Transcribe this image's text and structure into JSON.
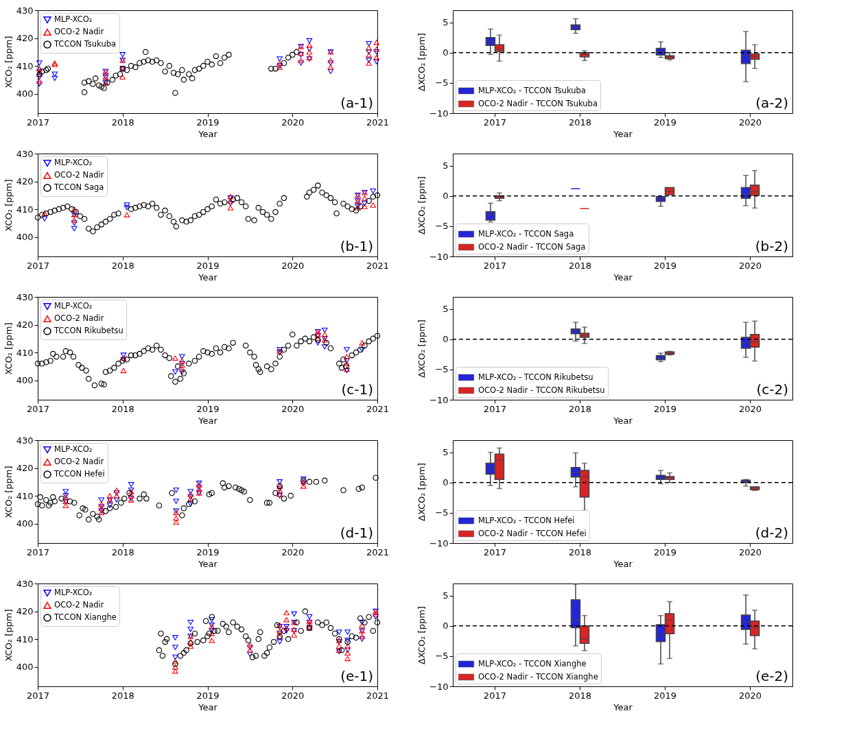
{
  "chart_data": [
    {
      "type": "scatter",
      "xlabel": "Year",
      "ylabel": "XCO₂  [ppm]",
      "xlim": [
        2017,
        2021
      ],
      "xticks": [
        2017,
        2018,
        2019,
        2020,
        2021
      ],
      "ylim": [
        393,
        430
      ],
      "yticks": [
        400,
        410,
        420,
        430
      ],
      "legend": "top left",
      "annotations": [
        "(a-1)"
      ],
      "series": [
        {
          "name": "MLP-XCO₂",
          "color": "#0000ff",
          "marker": "triangle-down",
          "x": [
            2017.02,
            2017.02,
            2017.02,
            2017.02,
            2017.2,
            2017.2,
            2017.8,
            2017.8,
            2017.8,
            2018.0,
            2018.0,
            2018.0,
            2019.85,
            2019.85,
            2020.1,
            2020.1,
            2020.1,
            2020.2,
            2020.2,
            2020.2,
            2020.45,
            2020.45,
            2020.45,
            2020.9,
            2020.9,
            2020.9,
            2020.99,
            2020.99
          ],
          "values": [
            403.5,
            406,
            408,
            411,
            405.5,
            407,
            404,
            406,
            408,
            409,
            412,
            414,
            410,
            412.5,
            411,
            414,
            417,
            412.5,
            416,
            419,
            408,
            411,
            415,
            412,
            415,
            418,
            411.5,
            415
          ]
        },
        {
          "name": "OCO-2 Nadir",
          "color": "#ff0000",
          "marker": "triangle",
          "x": [
            2017.02,
            2017.02,
            2017.02,
            2017.2,
            2017.2,
            2017.8,
            2017.8,
            2017.8,
            2018.0,
            2018.0,
            2018.0,
            2019.85,
            2019.85,
            2020.1,
            2020.1,
            2020.1,
            2020.2,
            2020.2,
            2020.2,
            2020.45,
            2020.45,
            2020.45,
            2020.9,
            2020.9,
            2020.9,
            2020.99,
            2020.99,
            2020.99
          ],
          "values": [
            404.5,
            407,
            409,
            410.5,
            411,
            404,
            406,
            408,
            406,
            409,
            412,
            409.5,
            411,
            412,
            414.5,
            417,
            413,
            415,
            417.5,
            409.5,
            412,
            415,
            411,
            414,
            416.5,
            413,
            416,
            418.5
          ]
        },
        {
          "name": "TCCON Tsukuba",
          "color": "#000000",
          "marker": "circle",
          "x": [
            2017.02,
            2017.05,
            2017.1,
            2017.12,
            2017.55,
            2017.55,
            2017.6,
            2017.65,
            2017.68,
            2017.72,
            2017.75,
            2017.78,
            2017.82,
            2017.88,
            2017.92,
            2017.97,
            2018.0,
            2018.05,
            2018.1,
            2018.15,
            2018.2,
            2018.25,
            2018.27,
            2018.3,
            2018.35,
            2018.4,
            2018.45,
            2018.5,
            2018.55,
            2018.6,
            2018.62,
            2018.65,
            2018.7,
            2018.72,
            2018.78,
            2018.82,
            2018.85,
            2018.9,
            2018.95,
            2019.0,
            2019.05,
            2019.1,
            2019.15,
            2019.2,
            2019.25,
            2019.75,
            2019.8,
            2019.9,
            2019.95,
            2020.0,
            2020.05
          ],
          "values": [
            407,
            408,
            408.5,
            409,
            400.5,
            404,
            404.5,
            403.5,
            405.5,
            403,
            402.5,
            402,
            404,
            405,
            406.5,
            407,
            409,
            408.5,
            410,
            409.5,
            411,
            411.5,
            415,
            412,
            411.5,
            412,
            411,
            408,
            410,
            407.5,
            400.3,
            407,
            408.5,
            405,
            407,
            405.5,
            408.5,
            409,
            410,
            411.5,
            410.5,
            413.5,
            411,
            413,
            414,
            409,
            409,
            411,
            413,
            414,
            415
          ]
        }
      ]
    },
    {
      "type": "box",
      "categories": [
        "2017",
        "2018",
        "2019",
        "2020"
      ],
      "xlabel": "Year",
      "ylabel": "ΔXCO₂  [ppm]",
      "ylim": [
        -10,
        7
      ],
      "yticks": [
        -10,
        -5,
        0,
        5
      ],
      "ref_lines": [
        {
          "axis": "y",
          "value": 0,
          "color": "#000000",
          "line_style": "dashed"
        }
      ],
      "legend": "bottom left",
      "annotations": [
        "(a-2)"
      ],
      "series": [
        {
          "name": "MLP-XCO₂ - TCCON Tsukuba",
          "color": "#2424d8",
          "boxes": [
            {
              "low": -0.3,
              "q1": 1.2,
              "median": 1.8,
              "q3": 2.5,
              "high": 3.9
            },
            {
              "low": 3.2,
              "q1": 3.8,
              "median": 4.2,
              "q3": 4.6,
              "high": 5.6
            },
            {
              "low": -0.8,
              "q1": -0.4,
              "median": 0.1,
              "q3": 0.7,
              "high": 1.8
            },
            {
              "low": -4.8,
              "q1": -1.8,
              "median": -0.5,
              "q3": 0.4,
              "high": 3.5
            }
          ]
        },
        {
          "name": "OCO-2 Nadir - TCCON Tsukuba",
          "color": "#d82424",
          "boxes": [
            {
              "low": -1.4,
              "q1": 0.2,
              "median": 0.6,
              "q3": 1.3,
              "high": 2.9
            },
            {
              "low": -1.3,
              "q1": -0.7,
              "median": -0.3,
              "q3": 0,
              "high": 0.3
            },
            {
              "low": -1.2,
              "q1": -1.0,
              "median": -0.7,
              "q3": -0.5,
              "high": 0
            },
            {
              "low": -2.6,
              "q1": -1.1,
              "median": -0.6,
              "q3": -0.2,
              "high": 1.3
            }
          ]
        }
      ]
    },
    {
      "type": "scatter",
      "xlabel": "Year",
      "ylabel": "XCO₂  [ppm]",
      "xlim": [
        2017,
        2021
      ],
      "xticks": [
        2017,
        2018,
        2019,
        2020,
        2021
      ],
      "ylim": [
        393,
        430
      ],
      "yticks": [
        400,
        410,
        420,
        430
      ],
      "legend": "top left",
      "annotations": [
        "(b-1)"
      ],
      "series": [
        {
          "name": "MLP-XCO₂",
          "color": "#0000ff",
          "marker": "triangle-down",
          "x": [
            2017.08,
            2017.43,
            2017.43,
            2017.43,
            2018.05,
            2018.05,
            2019.27,
            2019.27,
            2020.77,
            2020.77,
            2020.77,
            2020.85,
            2020.85,
            2020.95
          ],
          "values": [
            406.5,
            403,
            405,
            408,
            411.5,
            410.5,
            412,
            414,
            411,
            413,
            415,
            412,
            416,
            416.5
          ]
        },
        {
          "name": "OCO-2 Nadir",
          "color": "#ff0000",
          "marker": "triangle",
          "x": [
            2017.08,
            2017.43,
            2017.43,
            2017.43,
            2018.05,
            2019.27,
            2019.27,
            2019.27,
            2020.77,
            2020.77,
            2020.77,
            2020.85,
            2020.85,
            2020.85,
            2020.95
          ],
          "values": [
            408.5,
            406,
            408,
            410,
            408,
            410.5,
            413,
            414.5,
            410.5,
            413,
            415,
            411,
            414,
            416,
            411.5
          ]
        },
        {
          "name": "TCCON Saga",
          "color": "#000000",
          "marker": "circle",
          "x": [
            2017.0,
            2017.05,
            2017.1,
            2017.15,
            2017.2,
            2017.25,
            2017.3,
            2017.35,
            2017.4,
            2017.45,
            2017.5,
            2017.55,
            2017.6,
            2017.65,
            2017.7,
            2017.75,
            2017.8,
            2017.85,
            2017.9,
            2017.95,
            2018.1,
            2018.15,
            2018.2,
            2018.25,
            2018.3,
            2018.35,
            2018.4,
            2018.45,
            2018.5,
            2018.55,
            2018.6,
            2018.63,
            2018.7,
            2018.75,
            2018.8,
            2018.85,
            2018.9,
            2018.95,
            2019.0,
            2019.05,
            2019.1,
            2019.15,
            2019.2,
            2019.3,
            2019.35,
            2019.4,
            2019.45,
            2019.48,
            2019.55,
            2019.6,
            2019.65,
            2019.7,
            2019.75,
            2019.8,
            2019.85,
            2019.9,
            2020.17,
            2020.2,
            2020.25,
            2020.3,
            2020.35,
            2020.4,
            2020.45,
            2020.5,
            2020.52,
            2020.6,
            2020.65,
            2020.7,
            2020.75,
            2020.8,
            2020.9,
            2020.95,
            2021.0
          ],
          "values": [
            407,
            408,
            408.5,
            409,
            409.5,
            410,
            410.5,
            411,
            410,
            409,
            407.5,
            406.5,
            403,
            402,
            403.5,
            404.5,
            405.5,
            406.5,
            408,
            408.5,
            410,
            410.5,
            411,
            411.5,
            411,
            412,
            410.5,
            408,
            409.5,
            407.5,
            405.5,
            403.8,
            406,
            405.5,
            406,
            407.5,
            408,
            409,
            410,
            411,
            413.5,
            412,
            412.5,
            413.5,
            414,
            412.5,
            411,
            406.5,
            406,
            410.5,
            409,
            408,
            406.5,
            409,
            412,
            414,
            414.5,
            416,
            417,
            418.5,
            416,
            415,
            414,
            412.5,
            408.5,
            412,
            411,
            410,
            409.5,
            411,
            413,
            414.5,
            415
          ]
        }
      ]
    },
    {
      "type": "box",
      "categories": [
        "2017",
        "2018",
        "2019",
        "2020"
      ],
      "xlabel": "Year",
      "ylabel": "ΔXCO₂  [ppm]",
      "ylim": [
        -10,
        7
      ],
      "yticks": [
        -10,
        -5,
        0,
        5
      ],
      "ref_lines": [
        {
          "axis": "y",
          "value": 0,
          "color": "#000000",
          "line_style": "dashed"
        }
      ],
      "legend": "bottom left",
      "annotations": [
        "(b-2)"
      ],
      "series": [
        {
          "name": "MLP-XCO₂ - TCCON Saga",
          "color": "#2424d8",
          "boxes": [
            {
              "low": -4.3,
              "q1": -4.0,
              "median": -3.1,
              "q3": -2.6,
              "high": -1.2
            },
            {
              "low": 1.2,
              "q1": 1.2,
              "median": 1.2,
              "q3": 1.2,
              "high": 1.2
            },
            {
              "low": -1.7,
              "q1": -0.9,
              "median": -0.5,
              "q3": -0.1,
              "high": -0.1
            },
            {
              "low": -1.6,
              "q1": -0.4,
              "median": 0.3,
              "q3": 1.4,
              "high": 3.4
            }
          ]
        },
        {
          "name": "OCO-2 Nadir - TCCON Saga",
          "color": "#d82424",
          "boxes": [
            {
              "low": -0.8,
              "q1": -0.4,
              "median": -0.1,
              "q3": 0,
              "high": 0.5
            },
            {
              "low": -2.1,
              "q1": -2.1,
              "median": -2.1,
              "q3": -2.1,
              "high": -2.1
            },
            {
              "low": 0.2,
              "q1": 0.2,
              "median": 0.8,
              "q3": 1.4,
              "high": 1.4
            },
            {
              "low": -2.0,
              "q1": 0.1,
              "median": 0.7,
              "q3": 1.8,
              "high": 4.2
            }
          ]
        }
      ]
    },
    {
      "type": "scatter",
      "xlabel": "Year",
      "ylabel": "XCO₂  [ppm]",
      "xlim": [
        2017,
        2021
      ],
      "xticks": [
        2017,
        2018,
        2019,
        2020,
        2021
      ],
      "ylim": [
        393,
        430
      ],
      "yticks": [
        400,
        410,
        420,
        430
      ],
      "legend": "top left",
      "annotations": [
        "(c-1)"
      ],
      "series": [
        {
          "name": "MLP-XCO₂",
          "color": "#0000ff",
          "marker": "triangle-down",
          "x": [
            2018.01,
            2018.01,
            2018.62,
            2018.7,
            2018.7,
            2018.7,
            2019.85,
            2019.85,
            2020.3,
            2020.3,
            2020.3,
            2020.38,
            2020.38,
            2020.38,
            2020.64,
            2020.64,
            2020.64,
            2020.82
          ],
          "values": [
            409,
            407.5,
            403,
            403,
            406,
            408.5,
            410,
            411,
            413.5,
            416,
            417.5,
            412,
            415,
            418,
            403.5,
            407,
            411,
            411
          ]
        },
        {
          "name": "OCO-2 Nadir",
          "color": "#ff0000",
          "marker": "triangle",
          "x": [
            2018.01,
            2018.01,
            2018.62,
            2018.7,
            2018.7,
            2018.7,
            2019.85,
            2020.3,
            2020.3,
            2020.3,
            2020.38,
            2020.38,
            2020.64,
            2020.64,
            2020.64,
            2020.82
          ],
          "values": [
            403.5,
            408,
            408,
            404,
            405.5,
            407,
            410.5,
            415,
            416.5,
            417.5,
            414.5,
            416.5,
            404,
            406,
            408.5,
            413.5
          ]
        },
        {
          "name": "TCCON Rikubetsu",
          "color": "#000000",
          "marker": "circle",
          "x": [
            2017.0,
            2017.05,
            2017.1,
            2017.15,
            2017.18,
            2017.22,
            2017.3,
            2017.33,
            2017.38,
            2017.42,
            2017.48,
            2017.52,
            2017.57,
            2017.6,
            2017.67,
            2017.75,
            2017.78,
            2017.8,
            2017.85,
            2017.9,
            2017.95,
            2018.0,
            2018.05,
            2018.1,
            2018.15,
            2018.2,
            2018.25,
            2018.3,
            2018.35,
            2018.4,
            2018.45,
            2018.5,
            2018.55,
            2018.57,
            2018.62,
            2018.65,
            2018.68,
            2018.72,
            2018.78,
            2018.85,
            2018.9,
            2018.95,
            2019.0,
            2019.05,
            2019.1,
            2019.15,
            2019.2,
            2019.25,
            2019.3,
            2019.45,
            2019.5,
            2019.55,
            2019.57,
            2019.6,
            2019.62,
            2019.7,
            2019.75,
            2019.8,
            2019.85,
            2019.9,
            2019.95,
            2020.0,
            2020.05,
            2020.1,
            2020.15,
            2020.2,
            2020.25,
            2020.3,
            2020.4,
            2020.45,
            2020.55,
            2020.58,
            2020.6,
            2020.63,
            2020.7,
            2020.75,
            2020.8,
            2020.85,
            2020.9,
            2020.95,
            2021.0
          ],
          "values": [
            406,
            406,
            406.5,
            407,
            409.5,
            408.5,
            408.5,
            410.5,
            410,
            408.5,
            405.5,
            404.5,
            403.5,
            400.5,
            398.2,
            398.8,
            398.5,
            403,
            403.5,
            404.5,
            406,
            407,
            407.5,
            409,
            409,
            409.5,
            410.5,
            411.5,
            411,
            412.5,
            411,
            409,
            408,
            401.5,
            399.5,
            405,
            400.5,
            402.5,
            406,
            407,
            408.5,
            410.5,
            410,
            409.5,
            411.5,
            410,
            412,
            411.5,
            413.5,
            412.5,
            410,
            408.5,
            405.5,
            404,
            403,
            405,
            404,
            406,
            408.5,
            411,
            412.5,
            416.5,
            412.5,
            414,
            415,
            414,
            415.5,
            414.5,
            413.5,
            411.5,
            406,
            404.5,
            407.5,
            405,
            409,
            410,
            411,
            412.5,
            414,
            415,
            416
          ]
        }
      ]
    },
    {
      "type": "box",
      "categories": [
        "2017",
        "2018",
        "2019",
        "2020"
      ],
      "xlabel": "Year",
      "ylabel": "ΔXCO₂  [ppm]",
      "ylim": [
        -10,
        7
      ],
      "yticks": [
        -10,
        -5,
        0,
        5
      ],
      "ref_lines": [
        {
          "axis": "y",
          "value": 0,
          "color": "#000000",
          "line_style": "dashed"
        }
      ],
      "legend": "bottom left",
      "annotations": [
        "(c-2)"
      ],
      "series": [
        {
          "name": "MLP-XCO₂ - TCCON Rikubetsu",
          "color": "#2424d8",
          "boxes": [
            null,
            {
              "low": -0.3,
              "q1": 0.9,
              "median": 1.4,
              "q3": 1.7,
              "high": 2.8
            },
            {
              "low": -3.7,
              "q1": -3.4,
              "median": -3.1,
              "q3": -2.7,
              "high": -2.3
            },
            {
              "low": -3.0,
              "q1": -1.5,
              "median": -0.6,
              "q3": 0.3,
              "high": 2.8
            }
          ]
        },
        {
          "name": "OCO-2 Nadir - TCCON Rikubetsu",
          "color": "#d82424",
          "boxes": [
            null,
            {
              "low": -0.7,
              "q1": 0.3,
              "median": 0.6,
              "q3": 1.0,
              "high": 2.0
            },
            {
              "low": -2.6,
              "q1": -2.5,
              "median": -2.3,
              "q3": -2.1,
              "high": -2.0
            },
            {
              "low": -3.6,
              "q1": -1.3,
              "median": -0.4,
              "q3": 0.8,
              "high": 3.0
            }
          ]
        }
      ]
    },
    {
      "type": "scatter",
      "xlabel": "Year",
      "ylabel": "XCO₂  [ppm]",
      "xlim": [
        2017,
        2021
      ],
      "xticks": [
        2017,
        2018,
        2019,
        2020,
        2021
      ],
      "ylim": [
        393,
        430
      ],
      "yticks": [
        400,
        410,
        420,
        430
      ],
      "legend": "top left",
      "annotations": [
        "(d-1)"
      ],
      "series": [
        {
          "name": "MLP-XCO₂",
          "color": "#0000ff",
          "marker": "triangle-down",
          "x": [
            2017.33,
            2017.33,
            2017.33,
            2017.75,
            2017.75,
            2017.75,
            2017.85,
            2017.85,
            2017.93,
            2017.93,
            2018.1,
            2018.1,
            2018.1,
            2018.63,
            2018.63,
            2018.63,
            2018.8,
            2018.8,
            2018.8,
            2018.9,
            2018.9,
            2018.9,
            2019.85,
            2019.85,
            2019.85,
            2020.13,
            2020.13
          ],
          "values": [
            408,
            410,
            411.5,
            404.5,
            406,
            408.5,
            406.5,
            408.5,
            408.5,
            411,
            409,
            412,
            414,
            404.5,
            408,
            412,
            407,
            409.5,
            411.5,
            411,
            413,
            414.5,
            410,
            412.5,
            415,
            414.5,
            416
          ]
        },
        {
          "name": "OCO-2 Nadir",
          "color": "#ff0000",
          "marker": "triangle",
          "x": [
            2017.33,
            2017.33,
            2017.33,
            2017.75,
            2017.75,
            2017.75,
            2017.85,
            2017.85,
            2017.93,
            2017.93,
            2018.1,
            2018.1,
            2018.1,
            2018.63,
            2018.63,
            2018.63,
            2018.8,
            2018.8,
            2018.9,
            2018.9,
            2018.9,
            2019.85,
            2019.85,
            2019.85,
            2020.13,
            2020.13
          ],
          "values": [
            406.5,
            408,
            409.5,
            404,
            405.5,
            407,
            408.5,
            410,
            410,
            412,
            408.5,
            410,
            411.5,
            400.5,
            402,
            404,
            409,
            410.5,
            411,
            412.5,
            414,
            410.5,
            412,
            413.5,
            413.5,
            415
          ]
        },
        {
          "name": "TCCON Hefei",
          "color": "#000000",
          "marker": "circle",
          "x": [
            2017.0,
            2017.03,
            2017.05,
            2017.1,
            2017.13,
            2017.15,
            2017.18,
            2017.2,
            2017.28,
            2017.38,
            2017.43,
            2017.49,
            2017.53,
            2017.56,
            2017.6,
            2017.65,
            2017.7,
            2017.72,
            2017.8,
            2017.85,
            2017.92,
            2017.98,
            2018.02,
            2018.08,
            2018.2,
            2018.25,
            2018.28,
            2018.43,
            2018.58,
            2018.7,
            2018.72,
            2018.78,
            2018.85,
            2019.02,
            2019.05,
            2019.18,
            2019.2,
            2019.25,
            2019.33,
            2019.37,
            2019.4,
            2019.43,
            2019.5,
            2019.7,
            2019.73,
            2019.8,
            2019.85,
            2019.9,
            2019.98,
            2020.13,
            2020.2,
            2020.28,
            2020.38,
            2020.6,
            2020.78,
            2020.82,
            2020.98
          ],
          "values": [
            407,
            409.5,
            406.5,
            408.5,
            406.5,
            407.5,
            409.5,
            408,
            409,
            408,
            407.5,
            403,
            405.5,
            405,
            401.5,
            403.5,
            402.5,
            401.5,
            404.5,
            405.5,
            406,
            407.5,
            409,
            411,
            409,
            410.5,
            409,
            406.5,
            411,
            403,
            405.5,
            407,
            408,
            410.5,
            411,
            414.5,
            413,
            413.5,
            413,
            412.5,
            412,
            411.5,
            408.5,
            407.5,
            407.5,
            411,
            413.5,
            409,
            410,
            415.5,
            415,
            415,
            415.5,
            412,
            412.5,
            413,
            416.5
          ]
        }
      ]
    },
    {
      "type": "box",
      "categories": [
        "2017",
        "2018",
        "2019",
        "2020"
      ],
      "xlabel": "Year",
      "ylabel": "ΔXCO₂  [ppm]",
      "ylim": [
        -10,
        7
      ],
      "yticks": [
        -10,
        -5,
        0,
        5
      ],
      "ref_lines": [
        {
          "axis": "y",
          "value": 0,
          "color": "#000000",
          "line_style": "dashed"
        }
      ],
      "legend": "bottom left",
      "annotations": [
        "(d-2)"
      ],
      "series": [
        {
          "name": "MLP-XCO₂ - TCCON Hefei",
          "color": "#2424d8",
          "boxes": [
            {
              "low": -0.5,
              "q1": 1.4,
              "median": 2.5,
              "q3": 3.2,
              "high": 5.0
            },
            {
              "low": -0.7,
              "q1": 0.9,
              "median": 1.7,
              "q3": 2.5,
              "high": 4.9
            },
            {
              "low": -0.2,
              "q1": 0.5,
              "median": 0.8,
              "q3": 1.2,
              "high": 2.0
            },
            {
              "low": -0.6,
              "q1": 0,
              "median": 0.2,
              "q3": 0.4,
              "high": 0.5
            }
          ]
        },
        {
          "name": "OCO-2 Nadir - TCCON Hefei",
          "color": "#d82424",
          "boxes": [
            {
              "low": -1.0,
              "q1": 0.5,
              "median": 3.7,
              "q3": 4.7,
              "high": 5.7
            },
            {
              "low": -4.6,
              "q1": -2.4,
              "median": 1.0,
              "q3": 2.0,
              "high": 3.2
            },
            {
              "low": 0,
              "q1": 0.5,
              "median": 0.8,
              "q3": 1.0,
              "high": 1.6
            },
            {
              "low": -1.3,
              "q1": -1.2,
              "median": -0.9,
              "q3": -0.7,
              "high": -0.7
            }
          ]
        }
      ]
    },
    {
      "type": "scatter",
      "xlabel": "Year",
      "ylabel": "XCO₂  [ppm]",
      "xlim": [
        2017,
        2021
      ],
      "xticks": [
        2017,
        2018,
        2019,
        2020,
        2021
      ],
      "ylim": [
        393,
        430
      ],
      "yticks": [
        400,
        410,
        420,
        430
      ],
      "legend": "top left",
      "annotations": [
        "(e-1)"
      ],
      "series": [
        {
          "name": "MLP-XCO₂",
          "color": "#0000ff",
          "marker": "triangle-down",
          "x": [
            2018.62,
            2018.62,
            2018.62,
            2018.8,
            2018.8,
            2018.8,
            2019.05,
            2019.05,
            2019.05,
            2019.5,
            2019.5,
            2019.85,
            2019.85,
            2019.85,
            2019.93,
            2019.93,
            2020.02,
            2020.02,
            2020.02,
            2020.2,
            2020.2,
            2020.2,
            2020.55,
            2020.55,
            2020.55,
            2020.65,
            2020.65,
            2020.65,
            2020.82,
            2020.82,
            2020.82,
            2020.98,
            2020.98
          ],
          "values": [
            403.5,
            407,
            410.5,
            411,
            413.5,
            416,
            413,
            415,
            417,
            404.5,
            407,
            409,
            412,
            414.5,
            413,
            414.5,
            413,
            416,
            419,
            414,
            416,
            418,
            405.5,
            409,
            412.5,
            406,
            409.5,
            412.5,
            410,
            413,
            416,
            418,
            420
          ]
        },
        {
          "name": "OCO-2 Nadir",
          "color": "#ff0000",
          "marker": "triangle",
          "x": [
            2018.62,
            2018.62,
            2018.62,
            2018.8,
            2018.8,
            2018.8,
            2019.05,
            2019.05,
            2019.05,
            2019.5,
            2019.5,
            2019.85,
            2019.85,
            2019.85,
            2019.93,
            2019.93,
            2019.93,
            2020.02,
            2020.02,
            2020.02,
            2020.2,
            2020.2,
            2020.2,
            2020.55,
            2020.55,
            2020.55,
            2020.65,
            2020.65,
            2020.65,
            2020.82,
            2020.82,
            2020.82,
            2020.98,
            2020.98
          ],
          "values": [
            398.5,
            400,
            402,
            407.5,
            409,
            411,
            409.5,
            412,
            414.5,
            406,
            408,
            411,
            413,
            415,
            414,
            417,
            419.5,
            411.5,
            413.5,
            416,
            414,
            415.5,
            416.5,
            406,
            407.5,
            409.5,
            403,
            405,
            407.5,
            411,
            413,
            415,
            419,
            420
          ]
        },
        {
          "name": "TCCON Xianghe",
          "color": "#000000",
          "marker": "circle",
          "x": [
            2018.43,
            2018.45,
            2018.47,
            2018.5,
            2018.52,
            2018.62,
            2018.68,
            2018.72,
            2018.75,
            2018.8,
            2018.85,
            2018.88,
            2018.95,
            2018.98,
            2019.0,
            2019.02,
            2019.05,
            2019.08,
            2019.12,
            2019.18,
            2019.22,
            2019.25,
            2019.3,
            2019.35,
            2019.4,
            2019.45,
            2019.48,
            2019.53,
            2019.57,
            2019.6,
            2019.62,
            2019.67,
            2019.7,
            2019.73,
            2019.78,
            2019.82,
            2019.85,
            2019.9,
            2019.95,
            2020.05,
            2020.1,
            2020.15,
            2020.2,
            2020.3,
            2020.35,
            2020.4,
            2020.45,
            2020.5,
            2020.55,
            2020.58,
            2020.65,
            2020.7,
            2020.75,
            2020.8,
            2020.85,
            2020.9,
            2020.95,
            2021.0
          ],
          "values": [
            406,
            412,
            404,
            409,
            410,
            401,
            404,
            405,
            406,
            408.5,
            412,
            409,
            409.5,
            416.5,
            411,
            412,
            418,
            413,
            413,
            415.5,
            414.5,
            412.5,
            416,
            414.5,
            413.5,
            411,
            409.5,
            403.5,
            404,
            410,
            412.5,
            404,
            405,
            407,
            409,
            415,
            411,
            413,
            410,
            416,
            413,
            420,
            414,
            416,
            415,
            416,
            414,
            412,
            410,
            406,
            409,
            411,
            410.5,
            417.5,
            416,
            418,
            413,
            416
          ]
        }
      ]
    },
    {
      "type": "box",
      "categories": [
        "2017",
        "2018",
        "2019",
        "2020"
      ],
      "xlabel": "Year",
      "ylabel": "ΔXCO₂  [ppm]",
      "ylim": [
        -10,
        7
      ],
      "yticks": [
        -10,
        -5,
        0,
        5
      ],
      "ref_lines": [
        {
          "axis": "y",
          "value": 0,
          "color": "#000000",
          "line_style": "dashed"
        }
      ],
      "legend": "bottom left",
      "annotations": [
        "(e-2)"
      ],
      "series": [
        {
          "name": "MLP-XCO₂ - TCCON Xianghe",
          "color": "#2424d8",
          "boxes": [
            null,
            {
              "low": -3.3,
              "q1": -0.3,
              "median": 1.0,
              "q3": 4.3,
              "high": 6.9
            },
            {
              "low": -6.3,
              "q1": -2.6,
              "median": -1.5,
              "q3": 0.2,
              "high": 1.7
            },
            {
              "low": -3.0,
              "q1": -0.6,
              "median": 0.6,
              "q3": 1.8,
              "high": 5.1
            }
          ]
        },
        {
          "name": "OCO-2 Nadir - TCCON Xianghe",
          "color": "#d82424",
          "boxes": [
            null,
            {
              "low": -4.1,
              "q1": -2.9,
              "median": -2.2,
              "q3": 0,
              "high": 1.7
            },
            {
              "low": -5.4,
              "q1": -1.3,
              "median": 0.9,
              "q3": 2.0,
              "high": 4.0
            },
            {
              "low": -3.8,
              "q1": -1.6,
              "median": -0.3,
              "q3": 0.8,
              "high": 2.6
            }
          ]
        }
      ]
    }
  ]
}
